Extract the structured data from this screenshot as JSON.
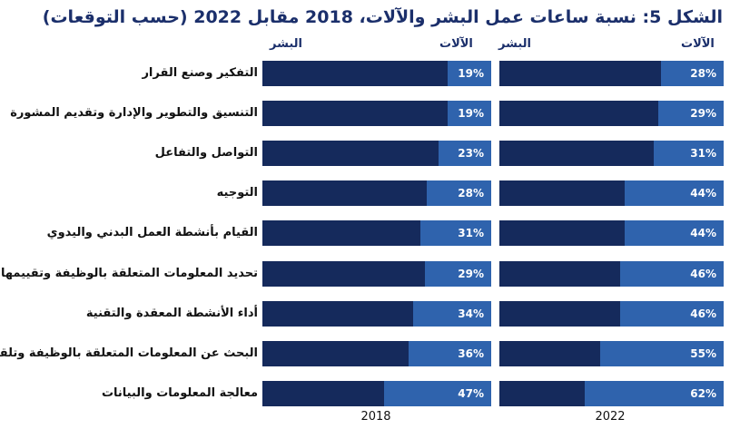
{
  "title": "الشكل 5: نسبة ساعات عمل البشر والآلات، 2018 مقابل 2022 (حسب التوقعات)",
  "colors": {
    "human": "#152a5c",
    "machine": "#2f63ad",
    "title": "#1b2f6b"
  },
  "legend": {
    "chart_2018": {
      "machine": "الآلات",
      "human": "البشر"
    },
    "chart_2022": {
      "machine": "الآلات",
      "human": "البشر"
    }
  },
  "chart_data": [
    {
      "type": "bar",
      "orientation": "horizontal",
      "stacked": true,
      "xlabel": "2018",
      "categories": [
        "التفكير وصنع القرار",
        "التنسيق والتطوير والإدارة وتقديم المشورة",
        "التواصل والتفاعل",
        "التوجيه",
        "القيام بأنشطة العمل البدني واليدوي",
        "تحديد المعلومات المتعلقة بالوظيفة وتقييمها",
        "أداء الأنشطة المعقدة والتقنية",
        "البحث عن المعلومات المتعلقة بالوظيفة وتلقيها",
        "معالجة المعلومات والبيانات"
      ],
      "series": [
        {
          "name": "الآلات",
          "values": [
            19,
            19,
            23,
            28,
            31,
            29,
            34,
            36,
            47
          ]
        },
        {
          "name": "البشر",
          "values": [
            81,
            81,
            77,
            72,
            69,
            71,
            66,
            64,
            53
          ]
        }
      ],
      "labels": [
        "19%",
        "19%",
        "23%",
        "28%",
        "31%",
        "29%",
        "34%",
        "36%",
        "47%"
      ],
      "xlim": [
        0,
        100
      ]
    },
    {
      "type": "bar",
      "orientation": "horizontal",
      "stacked": true,
      "xlabel": "2022",
      "categories": [
        "التفكير وصنع القرار",
        "التنسيق والتطوير والإدارة وتقديم المشورة",
        "التواصل والتفاعل",
        "التوجيه",
        "القيام بأنشطة العمل البدني واليدوي",
        "تحديد المعلومات المتعلقة بالوظيفة وتقييمها",
        "أداء الأنشطة المعقدة والتقنية",
        "البحث عن المعلومات المتعلقة بالوظيفة وتلقيها",
        "معالجة المعلومات والبيانات"
      ],
      "series": [
        {
          "name": "الآلات",
          "values": [
            28,
            29,
            31,
            44,
            44,
            46,
            46,
            55,
            62
          ]
        },
        {
          "name": "البشر",
          "values": [
            72,
            71,
            69,
            56,
            56,
            54,
            54,
            45,
            38
          ]
        }
      ],
      "labels": [
        "28%",
        "29%",
        "31%",
        "44%",
        "44%",
        "46%",
        "46%",
        "55%",
        "62%"
      ],
      "xlim": [
        0,
        100
      ]
    }
  ]
}
